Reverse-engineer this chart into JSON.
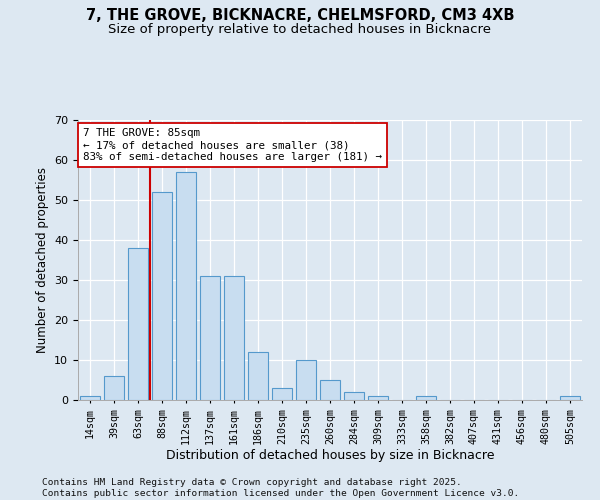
{
  "title1": "7, THE GROVE, BICKNACRE, CHELMSFORD, CM3 4XB",
  "title2": "Size of property relative to detached houses in Bicknacre",
  "xlabel": "Distribution of detached houses by size in Bicknacre",
  "ylabel": "Number of detached properties",
  "categories": [
    "14sqm",
    "39sqm",
    "63sqm",
    "88sqm",
    "112sqm",
    "137sqm",
    "161sqm",
    "186sqm",
    "210sqm",
    "235sqm",
    "260sqm",
    "284sqm",
    "309sqm",
    "333sqm",
    "358sqm",
    "382sqm",
    "407sqm",
    "431sqm",
    "456sqm",
    "480sqm",
    "505sqm"
  ],
  "values": [
    1,
    6,
    38,
    52,
    57,
    31,
    31,
    12,
    3,
    10,
    5,
    2,
    1,
    0,
    1,
    0,
    0,
    0,
    0,
    0,
    1
  ],
  "bar_color": "#c8ddf0",
  "bar_edge_color": "#5599cc",
  "vline_color": "#cc0000",
  "vline_bin_index": 3,
  "annotation_line1": "7 THE GROVE: 85sqm",
  "annotation_line2": "← 17% of detached houses are smaller (38)",
  "annotation_line3": "83% of semi-detached houses are larger (181) →",
  "ylim_max": 70,
  "yticks": [
    0,
    10,
    20,
    30,
    40,
    50,
    60,
    70
  ],
  "bg_color": "#dde8f2",
  "footer": "Contains HM Land Registry data © Crown copyright and database right 2025.\nContains public sector information licensed under the Open Government Licence v3.0."
}
